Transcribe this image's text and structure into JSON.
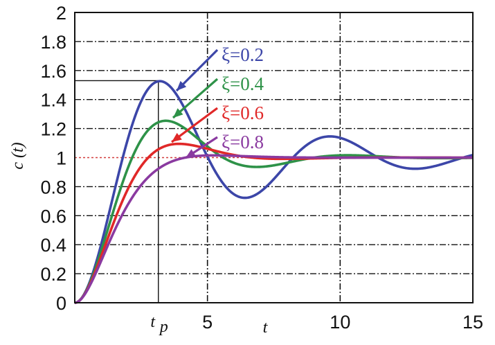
{
  "colors": {
    "background": "#ffffff",
    "grid": "#111111",
    "axis": "#111111",
    "reference_line": "#d23c3c"
  },
  "chart_data": {
    "type": "line",
    "title": "",
    "xlabel": "t",
    "ylabel": "c (t)",
    "xlim": [
      0,
      15
    ],
    "ylim": [
      0,
      2
    ],
    "grid": true,
    "legend_placement": "top-center",
    "x_tick_labels": [
      {
        "value": 3.15,
        "label": "t",
        "sub": "p"
      },
      {
        "value": 5,
        "label": "5"
      },
      {
        "value": 10,
        "label": "10"
      },
      {
        "value": 15,
        "label": "15"
      }
    ],
    "y_ticks": [
      0,
      0.2,
      0.4,
      0.6,
      0.8,
      1,
      1.2,
      1.4,
      1.6,
      1.8,
      2
    ],
    "y_tick_labels": [
      "0",
      "0.2",
      "0.4",
      "0.6",
      "0.8",
      "1",
      "1.2",
      "1.4",
      "1.6",
      "1.8",
      "2"
    ],
    "x_grid": [
      5,
      10
    ],
    "peak_marker": {
      "t": 3.15,
      "value": 1.53
    },
    "series": [
      {
        "name": "ξ=0.2",
        "zeta": 0.2,
        "color": "#3c46a8"
      },
      {
        "name": "ξ=0.4",
        "zeta": 0.4,
        "color": "#2e9248"
      },
      {
        "name": "ξ=0.6",
        "zeta": 0.6,
        "color": "#e02828"
      },
      {
        "name": "ξ=0.8",
        "zeta": 0.8,
        "color": "#8a3aa0"
      }
    ]
  }
}
